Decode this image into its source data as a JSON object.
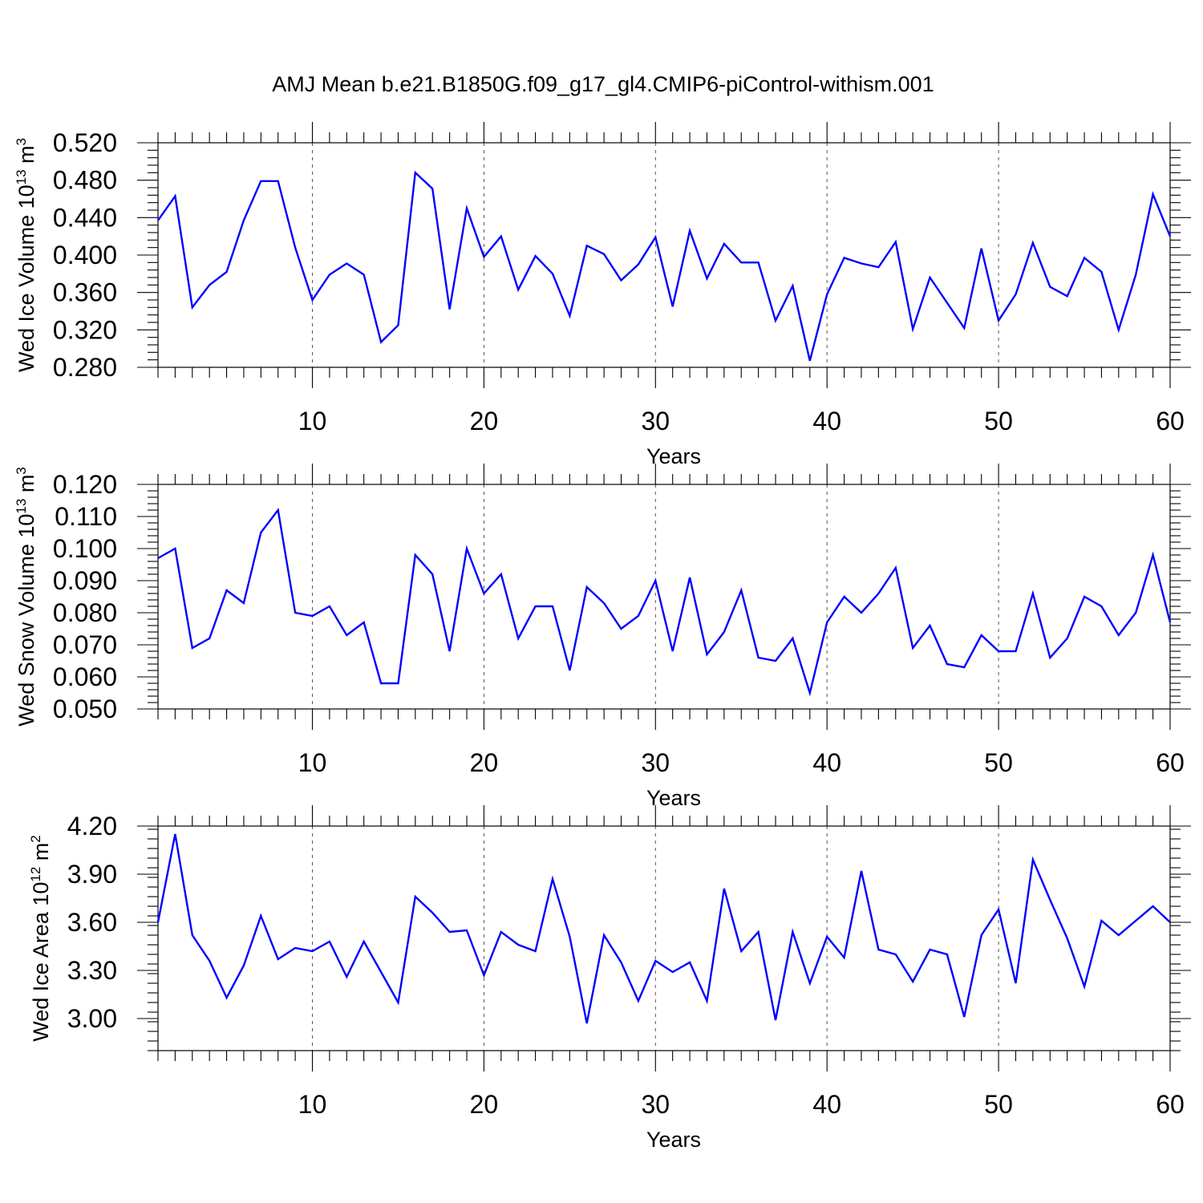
{
  "chart_data": {
    "title": "AMJ Mean b.e21.B1850G.f09_g17_gl4.CMIP6-piControl-withism.001",
    "panels": [
      {
        "type": "line",
        "ylabel_main": "Wed Ice Volume 10",
        "ylabel_exp": "13",
        "ylabel_unit": " m",
        "ylabel_unit_exp": "3",
        "xlabel": "Years",
        "xlim": [
          1,
          60
        ],
        "ylim": [
          0.28,
          0.52
        ],
        "yticks": [
          "0.520",
          "0.480",
          "0.440",
          "0.400",
          "0.360",
          "0.320",
          "0.280"
        ],
        "ytick_values": [
          0.52,
          0.48,
          0.44,
          0.4,
          0.36,
          0.32,
          0.28
        ],
        "xticks": [
          "10",
          "20",
          "30",
          "40",
          "50",
          "60"
        ],
        "xtick_values": [
          10,
          20,
          30,
          40,
          50,
          60
        ],
        "yminor_step": 0.008,
        "color": "#0000ff",
        "values": [
          0.437,
          0.463,
          0.344,
          0.368,
          0.382,
          0.437,
          0.479,
          0.479,
          0.408,
          0.352,
          0.379,
          0.391,
          0.379,
          0.307,
          0.325,
          0.488,
          0.471,
          0.342,
          0.45,
          0.398,
          0.42,
          0.363,
          0.399,
          0.38,
          0.335,
          0.41,
          0.401,
          0.373,
          0.39,
          0.419,
          0.345,
          0.426,
          0.375,
          0.412,
          0.392,
          0.392,
          0.33,
          0.367,
          0.287,
          0.358,
          0.397,
          0.391,
          0.387,
          0.414,
          0.321,
          0.376,
          0.349,
          0.322,
          0.407,
          0.33,
          0.358,
          0.413,
          0.366,
          0.356,
          0.397,
          0.382,
          0.32,
          0.379,
          0.465,
          0.42
        ]
      },
      {
        "type": "line",
        "ylabel_main": "Wed Snow Volume 10",
        "ylabel_exp": "13",
        "ylabel_unit": " m",
        "ylabel_unit_exp": "3",
        "xlabel": "Years",
        "xlim": [
          1,
          60
        ],
        "ylim": [
          0.05,
          0.12
        ],
        "yticks": [
          "0.120",
          "0.110",
          "0.100",
          "0.090",
          "0.080",
          "0.070",
          "0.060",
          "0.050"
        ],
        "ytick_values": [
          0.12,
          0.11,
          0.1,
          0.09,
          0.08,
          0.07,
          0.06,
          0.05
        ],
        "xticks": [
          "10",
          "20",
          "30",
          "40",
          "50",
          "60"
        ],
        "xtick_values": [
          10,
          20,
          30,
          40,
          50,
          60
        ],
        "yminor_step": 0.002,
        "color": "#0000ff",
        "values": [
          0.097,
          0.1,
          0.069,
          0.072,
          0.087,
          0.083,
          0.105,
          0.112,
          0.08,
          0.079,
          0.082,
          0.073,
          0.077,
          0.058,
          0.058,
          0.098,
          0.092,
          0.068,
          0.1,
          0.086,
          0.092,
          0.072,
          0.082,
          0.082,
          0.062,
          0.088,
          0.083,
          0.075,
          0.079,
          0.09,
          0.068,
          0.091,
          0.067,
          0.074,
          0.087,
          0.066,
          0.065,
          0.072,
          0.055,
          0.077,
          0.085,
          0.08,
          0.086,
          0.094,
          0.069,
          0.076,
          0.064,
          0.063,
          0.073,
          0.068,
          0.068,
          0.086,
          0.066,
          0.072,
          0.085,
          0.082,
          0.073,
          0.08,
          0.098,
          0.077
        ]
      },
      {
        "type": "line",
        "ylabel_main": "Wed Ice Area 10",
        "ylabel_exp": "12",
        "ylabel_unit": " m",
        "ylabel_unit_exp": "2",
        "xlabel": "Years",
        "xlim": [
          1,
          60
        ],
        "ylim": [
          2.8,
          4.2
        ],
        "yticks": [
          "4.20",
          "3.90",
          "3.60",
          "3.30",
          "3.00"
        ],
        "ytick_values": [
          4.2,
          3.9,
          3.6,
          3.3,
          3.0
        ],
        "xticks": [
          "10",
          "20",
          "30",
          "40",
          "50",
          "60"
        ],
        "xtick_values": [
          10,
          20,
          30,
          40,
          50,
          60
        ],
        "yminor_step": 0.06,
        "color": "#0000ff",
        "values": [
          3.6,
          4.15,
          3.52,
          3.36,
          3.13,
          3.33,
          3.64,
          3.37,
          3.44,
          3.42,
          3.48,
          3.26,
          3.48,
          3.29,
          3.1,
          3.76,
          3.66,
          3.54,
          3.55,
          3.27,
          3.54,
          3.46,
          3.42,
          3.87,
          3.51,
          2.97,
          3.52,
          3.35,
          3.11,
          3.36,
          3.29,
          3.35,
          3.11,
          3.81,
          3.42,
          3.54,
          2.99,
          3.54,
          3.22,
          3.51,
          3.38,
          3.92,
          3.43,
          3.4,
          3.23,
          3.43,
          3.4,
          3.01,
          3.52,
          3.68,
          3.22,
          3.99,
          3.74,
          3.5,
          3.2,
          3.61,
          3.52,
          3.61,
          3.7,
          3.6
        ]
      }
    ]
  }
}
